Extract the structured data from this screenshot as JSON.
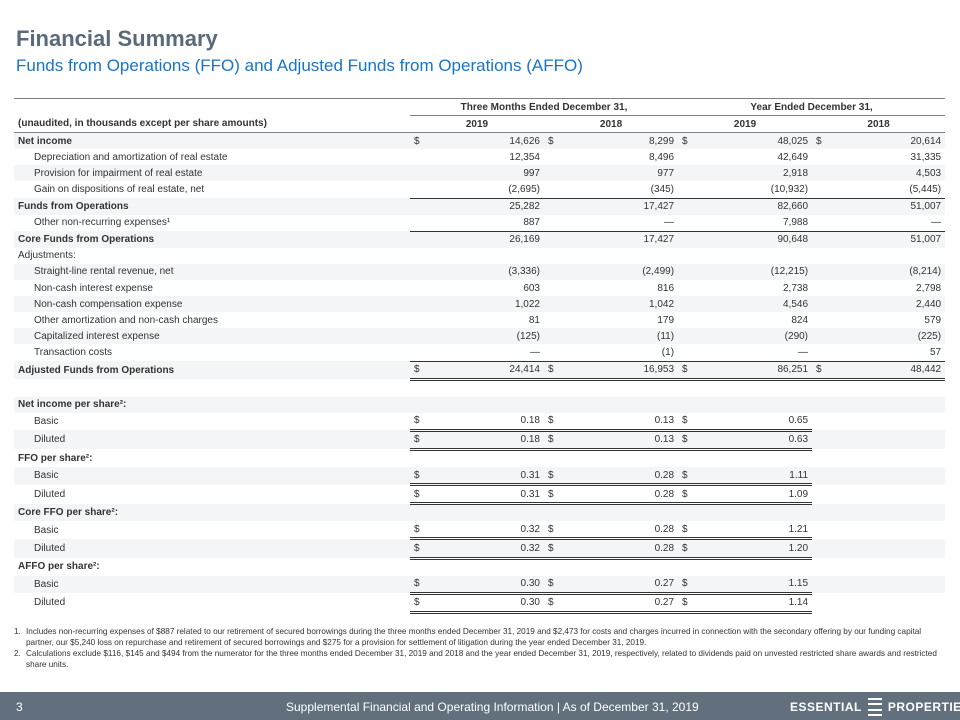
{
  "title": "Financial Summary",
  "subtitle": "Funds from Operations (FFO) and Adjusted Funds from Operations (AFFO)",
  "table": {
    "units_label": "(unaudited, in thousands except per share amounts)",
    "group1": "Three Months Ended December 31,",
    "group2": "Year Ended December 31,",
    "years": [
      "2019",
      "2018",
      "2019",
      "2018"
    ],
    "rows": [
      {
        "label": "Net income",
        "style": "bold",
        "cells": [
          [
            "$",
            "14,626"
          ],
          [
            "$",
            "8,299"
          ],
          [
            "$",
            "48,025"
          ],
          [
            "$",
            "20,614"
          ]
        ]
      },
      {
        "label": "Depreciation and amortization of real estate",
        "style": "sub",
        "cells": [
          [
            "",
            "12,354"
          ],
          [
            "",
            "8,496"
          ],
          [
            "",
            "42,649"
          ],
          [
            "",
            "31,335"
          ]
        ]
      },
      {
        "label": "Provision for impairment of real estate",
        "style": "sub",
        "cells": [
          [
            "",
            "997"
          ],
          [
            "",
            "977"
          ],
          [
            "",
            "2,918"
          ],
          [
            "",
            "4,503"
          ]
        ]
      },
      {
        "label": "Gain on dispositions of real estate, net",
        "style": "sub",
        "cells": [
          [
            "",
            "(2,695)"
          ],
          [
            "",
            "(345)"
          ],
          [
            "",
            "(10,932)"
          ],
          [
            "",
            "(5,445)"
          ]
        ],
        "line": "ul"
      },
      {
        "label": "Funds from Operations",
        "style": "bold",
        "cells": [
          [
            "",
            "25,282"
          ],
          [
            "",
            "17,427"
          ],
          [
            "",
            "82,660"
          ],
          [
            "",
            "51,007"
          ]
        ]
      },
      {
        "label": "Other non-recurring expenses¹",
        "style": "sub",
        "cells": [
          [
            "",
            "887"
          ],
          [
            "",
            "—"
          ],
          [
            "",
            "7,988"
          ],
          [
            "",
            "—"
          ]
        ],
        "line": "ul"
      },
      {
        "label": "Core Funds from Operations",
        "style": "bold",
        "cells": [
          [
            "",
            "26,169"
          ],
          [
            "",
            "17,427"
          ],
          [
            "",
            "90,648"
          ],
          [
            "",
            "51,007"
          ]
        ]
      },
      {
        "label": "Adjustments:",
        "style": "plain",
        "cells": [
          [
            "",
            ""
          ],
          [
            "",
            ""
          ],
          [
            "",
            ""
          ],
          [
            "",
            ""
          ]
        ]
      },
      {
        "label": "Straight-line rental revenue, net",
        "style": "sub",
        "cells": [
          [
            "",
            "(3,336)"
          ],
          [
            "",
            "(2,499)"
          ],
          [
            "",
            "(12,215)"
          ],
          [
            "",
            "(8,214)"
          ]
        ]
      },
      {
        "label": "Non-cash interest expense",
        "style": "sub",
        "cells": [
          [
            "",
            "603"
          ],
          [
            "",
            "816"
          ],
          [
            "",
            "2,738"
          ],
          [
            "",
            "2,798"
          ]
        ]
      },
      {
        "label": "Non-cash compensation expense",
        "style": "sub",
        "cells": [
          [
            "",
            "1,022"
          ],
          [
            "",
            "1,042"
          ],
          [
            "",
            "4,546"
          ],
          [
            "",
            "2,440"
          ]
        ]
      },
      {
        "label": "Other amortization and non-cash charges",
        "style": "sub",
        "cells": [
          [
            "",
            "81"
          ],
          [
            "",
            "179"
          ],
          [
            "",
            "824"
          ],
          [
            "",
            "579"
          ]
        ]
      },
      {
        "label": "Capitalized interest expense",
        "style": "sub",
        "cells": [
          [
            "",
            "(125)"
          ],
          [
            "",
            "(11)"
          ],
          [
            "",
            "(290)"
          ],
          [
            "",
            "(225)"
          ]
        ]
      },
      {
        "label": "Transaction costs",
        "style": "sub",
        "cells": [
          [
            "",
            "—"
          ],
          [
            "",
            "(1)"
          ],
          [
            "",
            "—"
          ],
          [
            "",
            "57"
          ]
        ],
        "line": "ul"
      },
      {
        "label": "Adjusted Funds from Operations",
        "style": "bold",
        "cells": [
          [
            "$",
            "24,414"
          ],
          [
            "$",
            "16,953"
          ],
          [
            "$",
            "86,251"
          ],
          [
            "$",
            "48,442"
          ]
        ],
        "line": "dul"
      },
      {
        "label": "",
        "style": "plain",
        "cells": [
          [
            "",
            ""
          ],
          [
            "",
            ""
          ],
          [
            "",
            ""
          ],
          [
            "",
            ""
          ]
        ]
      },
      {
        "label": "Net income per share²:",
        "style": "bold",
        "cells": [
          [
            "",
            ""
          ],
          [
            "",
            ""
          ],
          [
            "",
            ""
          ],
          [
            "",
            ""
          ]
        ]
      },
      {
        "label": "Basic",
        "style": "sub",
        "cells": [
          [
            "$",
            "0.18"
          ],
          [
            "$",
            "0.13"
          ],
          [
            "$",
            "0.65"
          ],
          [
            "",
            ""
          ]
        ],
        "line": "dul"
      },
      {
        "label": "Diluted",
        "style": "sub",
        "cells": [
          [
            "$",
            "0.18"
          ],
          [
            "$",
            "0.13"
          ],
          [
            "$",
            "0.63"
          ],
          [
            "",
            ""
          ]
        ],
        "line": "dul"
      },
      {
        "label": "FFO per share²:",
        "style": "bold",
        "cells": [
          [
            "",
            ""
          ],
          [
            "",
            ""
          ],
          [
            "",
            ""
          ],
          [
            "",
            ""
          ]
        ]
      },
      {
        "label": "Basic",
        "style": "sub",
        "cells": [
          [
            "$",
            "0.31"
          ],
          [
            "$",
            "0.28"
          ],
          [
            "$",
            "1.11"
          ],
          [
            "",
            ""
          ]
        ],
        "line": "dul"
      },
      {
        "label": "Diluted",
        "style": "sub",
        "cells": [
          [
            "$",
            "0.31"
          ],
          [
            "$",
            "0.28"
          ],
          [
            "$",
            "1.09"
          ],
          [
            "",
            ""
          ]
        ],
        "line": "dul"
      },
      {
        "label": "Core FFO per share²:",
        "style": "bold",
        "cells": [
          [
            "",
            ""
          ],
          [
            "",
            ""
          ],
          [
            "",
            ""
          ],
          [
            "",
            ""
          ]
        ]
      },
      {
        "label": "Basic",
        "style": "sub",
        "cells": [
          [
            "$",
            "0.32"
          ],
          [
            "$",
            "0.28"
          ],
          [
            "$",
            "1.21"
          ],
          [
            "",
            ""
          ]
        ],
        "line": "dul"
      },
      {
        "label": "Diluted",
        "style": "sub",
        "cells": [
          [
            "$",
            "0.32"
          ],
          [
            "$",
            "0.28"
          ],
          [
            "$",
            "1.20"
          ],
          [
            "",
            ""
          ]
        ],
        "line": "dul"
      },
      {
        "label": "AFFO per share²:",
        "style": "bold",
        "cells": [
          [
            "",
            ""
          ],
          [
            "",
            ""
          ],
          [
            "",
            ""
          ],
          [
            "",
            ""
          ]
        ]
      },
      {
        "label": "Basic",
        "style": "sub",
        "cells": [
          [
            "$",
            "0.30"
          ],
          [
            "$",
            "0.27"
          ],
          [
            "$",
            "1.15"
          ],
          [
            "",
            ""
          ]
        ],
        "line": "dul"
      },
      {
        "label": "Diluted",
        "style": "sub",
        "cells": [
          [
            "$",
            "0.30"
          ],
          [
            "$",
            "0.27"
          ],
          [
            "$",
            "1.14"
          ],
          [
            "",
            ""
          ]
        ],
        "line": "dul"
      }
    ]
  },
  "footnotes": [
    {
      "n": "1.",
      "text": "Includes non-recurring expenses of $887 related to our retirement of secured borrowings during the three months ended December 31, 2019 and $2,473 for costs and charges incurred in connection with the secondary offering by our funding capital partner, our $5,240 loss on repurchase and retirement of secured borrowings and $275 for a provision for settlement of litigation during the year ended December 31, 2019."
    },
    {
      "n": "2.",
      "text": "Calculations exclude $116, $145 and $494 from the numerator for the three months ended December 31, 2019 and 2018 and the year ended December 31, 2019, respectively, related to dividends paid on unvested restricted share awards and restricted share units."
    }
  ],
  "footer": {
    "page": "3",
    "text": "Supplemental Financial and Operating Information | As of December 31, 2019",
    "logo_left": "ESSENTIAL",
    "logo_right": "PROPERTIES"
  }
}
